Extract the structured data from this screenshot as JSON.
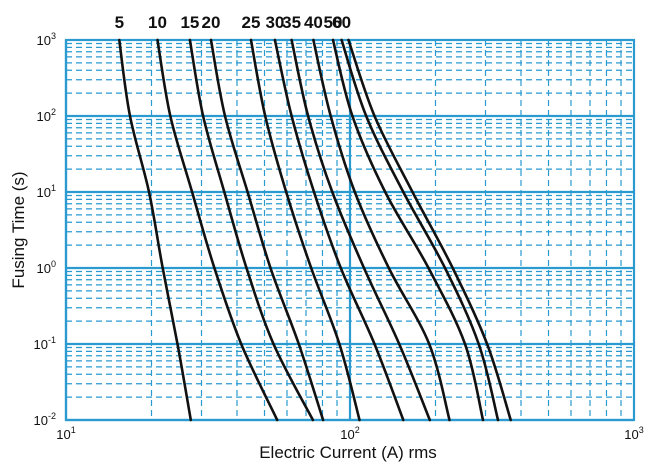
{
  "chart_data": {
    "type": "line",
    "xlabel": "Electric Current  (A) rms",
    "ylabel": "Fusing Time (s)",
    "x_scale": "log",
    "y_scale": "log",
    "xlim": [
      10,
      1000
    ],
    "ylim": [
      0.01,
      1000
    ],
    "grid": true,
    "colors": {
      "grid": "#2a9ad0",
      "curve": "#111111",
      "background": "#ffffff"
    },
    "x_ticks": [
      {
        "base": "10",
        "exp": "1"
      },
      {
        "base": "10",
        "exp": "2"
      },
      {
        "base": "10",
        "exp": "3"
      }
    ],
    "y_ticks": [
      {
        "base": "10",
        "exp": "3"
      },
      {
        "base": "10",
        "exp": "2"
      },
      {
        "base": "10",
        "exp": "1"
      },
      {
        "base": "10",
        "exp": "0"
      },
      {
        "base": "10",
        "exp": "-1"
      },
      {
        "base": "10",
        "exp": "-2"
      }
    ],
    "series": [
      {
        "name": "5",
        "points": [
          [
            15.4,
            1000
          ],
          [
            16.8,
            100
          ],
          [
            19.6,
            10
          ],
          [
            21.9,
            1
          ],
          [
            24.7,
            0.1
          ],
          [
            27.5,
            0.01
          ]
        ]
      },
      {
        "name": "10",
        "points": [
          [
            21.0,
            1000
          ],
          [
            23.3,
            100
          ],
          [
            27.8,
            10
          ],
          [
            33.3,
            1
          ],
          [
            41.4,
            0.1
          ],
          [
            55.4,
            0.01
          ]
        ]
      },
      {
        "name": "15",
        "points": [
          [
            27.3,
            1000
          ],
          [
            30.4,
            100
          ],
          [
            36.1,
            10
          ],
          [
            43.2,
            1
          ],
          [
            53.8,
            0.1
          ],
          [
            74.0,
            0.01
          ]
        ]
      },
      {
        "name": "20",
        "points": [
          [
            32.4,
            1000
          ],
          [
            36.3,
            100
          ],
          [
            43.6,
            10
          ],
          [
            52.5,
            1
          ],
          [
            66.0,
            0.1
          ],
          [
            80.4,
            0.01
          ]
        ]
      },
      {
        "name": "25",
        "points": [
          [
            44.8,
            1000
          ],
          [
            50.3,
            100
          ],
          [
            59.6,
            10
          ],
          [
            73.0,
            1
          ],
          [
            91.8,
            0.1
          ],
          [
            108,
            0.01
          ]
        ]
      },
      {
        "name": "30",
        "points": [
          [
            54.4,
            1000
          ],
          [
            62.3,
            100
          ],
          [
            74.7,
            10
          ],
          [
            92.8,
            1
          ],
          [
            122,
            0.1
          ],
          [
            154,
            0.01
          ]
        ]
      },
      {
        "name": "35",
        "points": [
          [
            62.3,
            1000
          ],
          [
            71.2,
            100
          ],
          [
            86.6,
            10
          ],
          [
            112,
            1
          ],
          [
            149,
            0.1
          ],
          [
            191,
            0.01
          ]
        ]
      },
      {
        "name": "40",
        "points": [
          [
            74.3,
            1000
          ],
          [
            85.5,
            100
          ],
          [
            104,
            10
          ],
          [
            137,
            1
          ],
          [
            190,
            0.1
          ],
          [
            224,
            0.01
          ]
        ]
      },
      {
        "name": "50",
        "points": [
          [
            87.1,
            1000
          ],
          [
            102,
            100
          ],
          [
            133,
            10
          ],
          [
            189,
            1
          ],
          [
            254,
            0.1
          ],
          [
            294,
            0.01
          ]
        ]
      },
      {
        "name": "60",
        "points": [
          [
            93.4,
            1000
          ],
          [
            114,
            100
          ],
          [
            154,
            10
          ],
          [
            216,
            1
          ],
          [
            284,
            0.1
          ],
          [
            332,
            0.01
          ]
        ]
      },
      {
        "name": "",
        "points": [
          [
            98.8,
            1000
          ],
          [
            122,
            100
          ],
          [
            166,
            10
          ],
          [
            230,
            1
          ],
          [
            304,
            0.1
          ],
          [
            368,
            0.01
          ]
        ]
      }
    ]
  }
}
